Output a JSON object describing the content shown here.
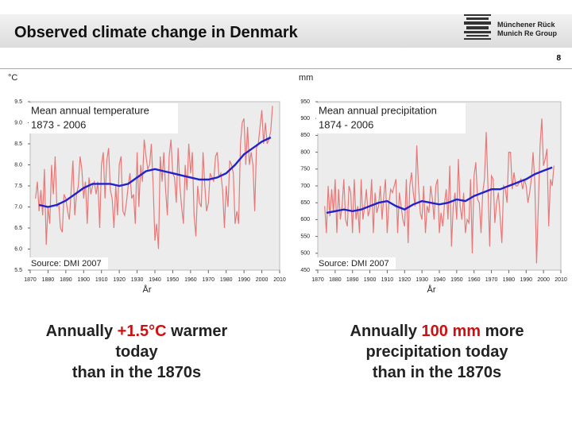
{
  "header": {
    "title": "Observed climate change in Denmark",
    "page": "8",
    "logo": [
      "Münchener Rück",
      "Munich Re Group"
    ]
  },
  "captions": [
    [
      "Annually ",
      "+1.5°C",
      " warmer",
      "today",
      "than in the 1870s"
    ],
    [
      "Annually ",
      "100 mm",
      " more",
      "precipitation today",
      "than in the 1870s"
    ]
  ],
  "chart_data": [
    {
      "type": "line",
      "title": "Mean annual temperature",
      "subtitle": "1873 - 2006",
      "source": "Source: DMI 2007",
      "ylabel": "°C",
      "xlabel": "År",
      "xlim": [
        1870,
        2010
      ],
      "xticks": [
        1870,
        1880,
        1890,
        1900,
        1910,
        1920,
        1930,
        1940,
        1950,
        1960,
        1970,
        1980,
        1990,
        2000,
        2010
      ],
      "ylim": [
        5.5,
        9.5
      ],
      "yticks": [
        5.5,
        {
          "value": 6,
          "label": "6.0"
        },
        6.5,
        {
          "value": 7,
          "label": "7.0"
        },
        7.5,
        {
          "value": 8,
          "label": "8.0"
        },
        8.5,
        {
          "value": 9,
          "label": "9.0"
        },
        9.5
      ],
      "x": [
        1873,
        1874,
        1875,
        1876,
        1877,
        1878,
        1879,
        1880,
        1881,
        1882,
        1883,
        1884,
        1885,
        1886,
        1887,
        1888,
        1889,
        1890,
        1891,
        1892,
        1893,
        1894,
        1895,
        1896,
        1897,
        1898,
        1899,
        1900,
        1901,
        1902,
        1903,
        1904,
        1905,
        1906,
        1907,
        1908,
        1909,
        1910,
        1911,
        1912,
        1913,
        1914,
        1915,
        1916,
        1917,
        1918,
        1919,
        1920,
        1921,
        1922,
        1923,
        1924,
        1925,
        1926,
        1927,
        1928,
        1929,
        1930,
        1931,
        1932,
        1933,
        1934,
        1935,
        1936,
        1937,
        1938,
        1939,
        1940,
        1941,
        1942,
        1943,
        1944,
        1945,
        1946,
        1947,
        1948,
        1949,
        1950,
        1951,
        1952,
        1953,
        1954,
        1955,
        1956,
        1957,
        1958,
        1959,
        1960,
        1961,
        1962,
        1963,
        1964,
        1965,
        1966,
        1967,
        1968,
        1969,
        1970,
        1971,
        1972,
        1973,
        1974,
        1975,
        1976,
        1977,
        1978,
        1979,
        1980,
        1981,
        1982,
        1983,
        1984,
        1985,
        1986,
        1987,
        1988,
        1989,
        1990,
        1991,
        1992,
        1993,
        1994,
        1995,
        1996,
        1997,
        1998,
        1999,
        2000,
        2001,
        2002,
        2003,
        2004,
        2005,
        2006
      ],
      "series": [
        {
          "color": "#e87878",
          "values": [
            7.2,
            7.6,
            6.9,
            7.4,
            6.8,
            7.9,
            6.1,
            7.0,
            6.6,
            8.0,
            7.3,
            8.2,
            7.0,
            7.1,
            6.5,
            6.4,
            7.3,
            7.2,
            6.9,
            6.7,
            7.4,
            8.1,
            6.8,
            7.3,
            7.5,
            8.2,
            7.9,
            7.2,
            7.6,
            6.6,
            7.7,
            7.3,
            7.5,
            7.6,
            7.3,
            7.6,
            6.5,
            8.0,
            8.3,
            7.2,
            8.1,
            8.4,
            7.4,
            7.2,
            6.5,
            7.5,
            6.8,
            8.0,
            8.2,
            6.9,
            6.8,
            7.1,
            7.5,
            7.8,
            7.2,
            7.3,
            6.6,
            8.3,
            7.0,
            8.0,
            7.6,
            8.6,
            8.2,
            7.9,
            8.0,
            8.5,
            7.5,
            6.2,
            6.6,
            6.0,
            8.2,
            7.6,
            8.3,
            7.4,
            6.8,
            8.2,
            8.6,
            7.8,
            7.7,
            7.1,
            8.4,
            7.5,
            7.0,
            6.6,
            8.0,
            7.4,
            8.5,
            7.8,
            8.3,
            6.8,
            6.3,
            7.5,
            7.1,
            7.0,
            8.3,
            7.5,
            6.9,
            7.1,
            7.8,
            7.7,
            7.6,
            8.2,
            8.3,
            7.7,
            7.8,
            7.4,
            6.5,
            7.5,
            7.0,
            8.1,
            8.0,
            7.8,
            6.6,
            6.9,
            6.6,
            8.5,
            9.0,
            9.1,
            8.0,
            8.9,
            8.0,
            8.3,
            8.0,
            6.9,
            8.4,
            8.5,
            8.9,
            9.3,
            8.5,
            9.0,
            8.5,
            8.6,
            8.8,
            9.4
          ]
        },
        {
          "color": "#2222cc",
          "x": [
            1875,
            1880,
            1885,
            1890,
            1895,
            1900,
            1905,
            1910,
            1915,
            1920,
            1925,
            1930,
            1935,
            1940,
            1945,
            1950,
            1955,
            1960,
            1965,
            1970,
            1975,
            1980,
            1985,
            1990,
            1995,
            2000,
            2005
          ],
          "values": [
            7.05,
            7.0,
            7.05,
            7.15,
            7.3,
            7.45,
            7.55,
            7.55,
            7.55,
            7.5,
            7.55,
            7.7,
            7.85,
            7.9,
            7.85,
            7.8,
            7.75,
            7.7,
            7.65,
            7.65,
            7.7,
            7.8,
            8.0,
            8.25,
            8.4,
            8.55,
            8.65
          ]
        }
      ]
    },
    {
      "type": "line",
      "title": "Mean annual precipitation",
      "subtitle": "1874 - 2006",
      "source": "Source: DMI 2007",
      "ylabel": "mm",
      "xlabel": "År",
      "xlim": [
        1870,
        2010
      ],
      "xticks": [
        1870,
        1880,
        1890,
        1900,
        1910,
        1920,
        1930,
        1940,
        1950,
        1960,
        1970,
        1980,
        1990,
        2000,
        2010
      ],
      "ylim": [
        450,
        950
      ],
      "yticks": [
        450,
        500,
        550,
        600,
        650,
        700,
        750,
        800,
        850,
        900,
        950
      ],
      "x": [
        1874,
        1875,
        1876,
        1877,
        1878,
        1879,
        1880,
        1881,
        1882,
        1883,
        1884,
        1885,
        1886,
        1887,
        1888,
        1889,
        1890,
        1891,
        1892,
        1893,
        1894,
        1895,
        1896,
        1897,
        1898,
        1899,
        1900,
        1901,
        1902,
        1903,
        1904,
        1905,
        1906,
        1907,
        1908,
        1909,
        1910,
        1911,
        1912,
        1913,
        1914,
        1915,
        1916,
        1917,
        1918,
        1919,
        1920,
        1921,
        1922,
        1923,
        1924,
        1925,
        1926,
        1927,
        1928,
        1929,
        1930,
        1931,
        1932,
        1933,
        1934,
        1935,
        1936,
        1937,
        1938,
        1939,
        1940,
        1941,
        1942,
        1943,
        1944,
        1945,
        1946,
        1947,
        1948,
        1949,
        1950,
        1951,
        1952,
        1953,
        1954,
        1955,
        1956,
        1957,
        1958,
        1959,
        1960,
        1961,
        1962,
        1963,
        1964,
        1965,
        1966,
        1967,
        1968,
        1969,
        1970,
        1971,
        1972,
        1973,
        1974,
        1975,
        1976,
        1977,
        1978,
        1979,
        1980,
        1981,
        1982,
        1983,
        1984,
        1985,
        1986,
        1987,
        1988,
        1989,
        1990,
        1991,
        1992,
        1993,
        1994,
        1995,
        1996,
        1997,
        1998,
        1999,
        2000,
        2001,
        2002,
        2003,
        2004,
        2005,
        2006
      ],
      "series": [
        {
          "color": "#e87878",
          "values": [
            640,
            560,
            700,
            610,
            690,
            620,
            720,
            560,
            690,
            600,
            640,
            720,
            600,
            580,
            700,
            680,
            560,
            720,
            600,
            640,
            560,
            720,
            600,
            640,
            690,
            610,
            630,
            720,
            560,
            680,
            620,
            640,
            700,
            600,
            670,
            720,
            560,
            650,
            690,
            680,
            700,
            720,
            560,
            680,
            640,
            600,
            580,
            720,
            530,
            700,
            740,
            680,
            640,
            820,
            700,
            620,
            600,
            700,
            560,
            640,
            620,
            700,
            660,
            600,
            700,
            720,
            560,
            620,
            580,
            650,
            690,
            600,
            760,
            520,
            640,
            680,
            600,
            780,
            640,
            600,
            680,
            560,
            600,
            590,
            720,
            500,
            730,
            770,
            660,
            650,
            560,
            680,
            720,
            860,
            700,
            520,
            730,
            720,
            590,
            650,
            680,
            610,
            530,
            700,
            690,
            650,
            800,
            800,
            690,
            740,
            700,
            700,
            710,
            720,
            690,
            720,
            700,
            650,
            680,
            720,
            800,
            710,
            470,
            640,
            820,
            900,
            760,
            780,
            810,
            580,
            720,
            700,
            760
          ]
        },
        {
          "color": "#2222cc",
          "x": [
            1875,
            1880,
            1885,
            1890,
            1895,
            1900,
            1905,
            1910,
            1915,
            1920,
            1925,
            1930,
            1935,
            1940,
            1945,
            1950,
            1955,
            1960,
            1965,
            1970,
            1975,
            1980,
            1985,
            1990,
            1995,
            2000,
            2005
          ],
          "values": [
            620,
            625,
            630,
            625,
            630,
            640,
            650,
            655,
            640,
            630,
            645,
            655,
            650,
            645,
            650,
            660,
            655,
            670,
            680,
            690,
            690,
            700,
            710,
            720,
            735,
            745,
            755
          ]
        }
      ]
    }
  ]
}
